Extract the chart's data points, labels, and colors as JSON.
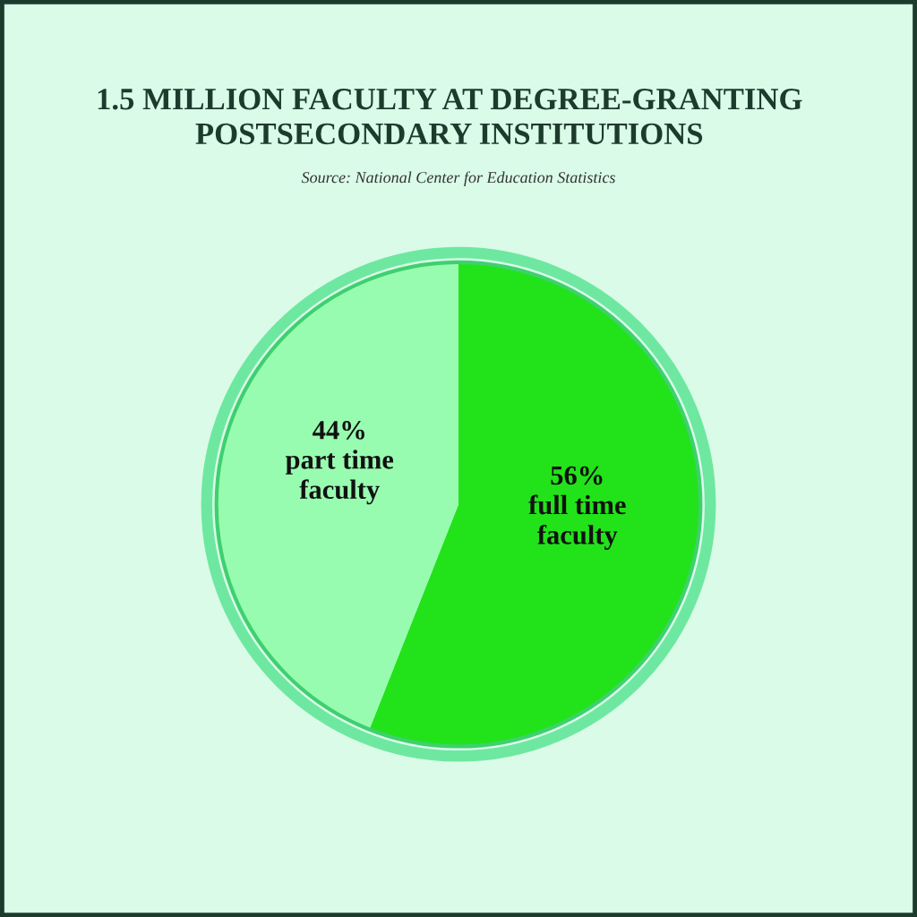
{
  "chart_data": {
    "type": "pie",
    "title": "1.5 MILLION FACULTY AT DEGREE-GRANTING\nPOSTSECONDARY INSTITUTIONS",
    "annotations": [
      "Source: National Center for Education Statistics"
    ],
    "categories": [
      "full time\nfaculty",
      "part time\nfaculty"
    ],
    "values": [
      56,
      44
    ],
    "value_labels": [
      "56%",
      "44%"
    ],
    "colors": [
      "#22e31a",
      "#98fcb0"
    ],
    "legend": false
  }
}
